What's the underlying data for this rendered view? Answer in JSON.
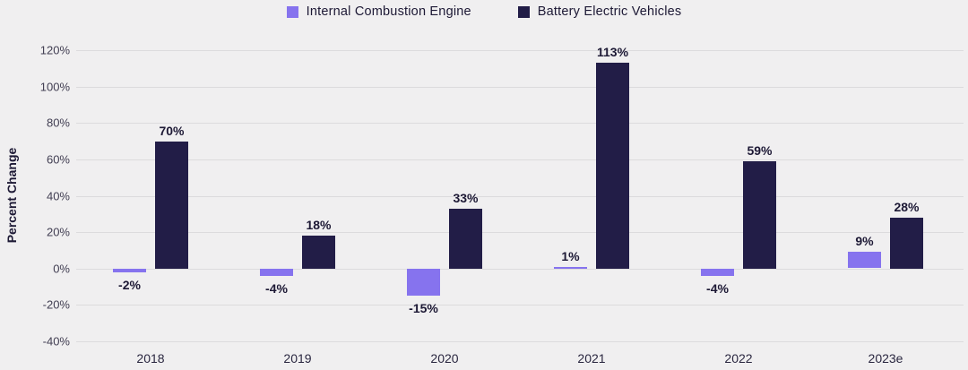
{
  "chart_data": {
    "type": "bar",
    "title": "",
    "xlabel": "",
    "ylabel": "Percent Change",
    "categories": [
      "2018",
      "2019",
      "2020",
      "2021",
      "2022",
      "2023e"
    ],
    "series": [
      {
        "name": "Internal Combustion Engine",
        "color": "#8673ee",
        "values": [
          -2,
          -4,
          -15,
          1,
          -4,
          9
        ],
        "labels": [
          "-2%",
          "-4%",
          "-15%",
          "1%",
          "-4%",
          "9%"
        ]
      },
      {
        "name": "Battery Electric Vehicles",
        "color": "#221d47",
        "values": [
          70,
          18,
          33,
          113,
          59,
          28
        ],
        "labels": [
          "70%",
          "18%",
          "33%",
          "113%",
          "59%",
          "28%"
        ]
      }
    ],
    "ylim": [
      -40,
      120
    ],
    "ytick_step": 20,
    "ytick_labels": [
      "120%",
      "100%",
      "80%",
      "60%",
      "40%",
      "20%",
      "0%",
      "-20%",
      "-40%"
    ],
    "grid": true,
    "legend_position": "top-center",
    "colors": {
      "background": "#f0eff0",
      "gridline": "#dcdbdd",
      "value_label_text": "#1d1935",
      "axis_tick_text": "#413e52"
    }
  }
}
